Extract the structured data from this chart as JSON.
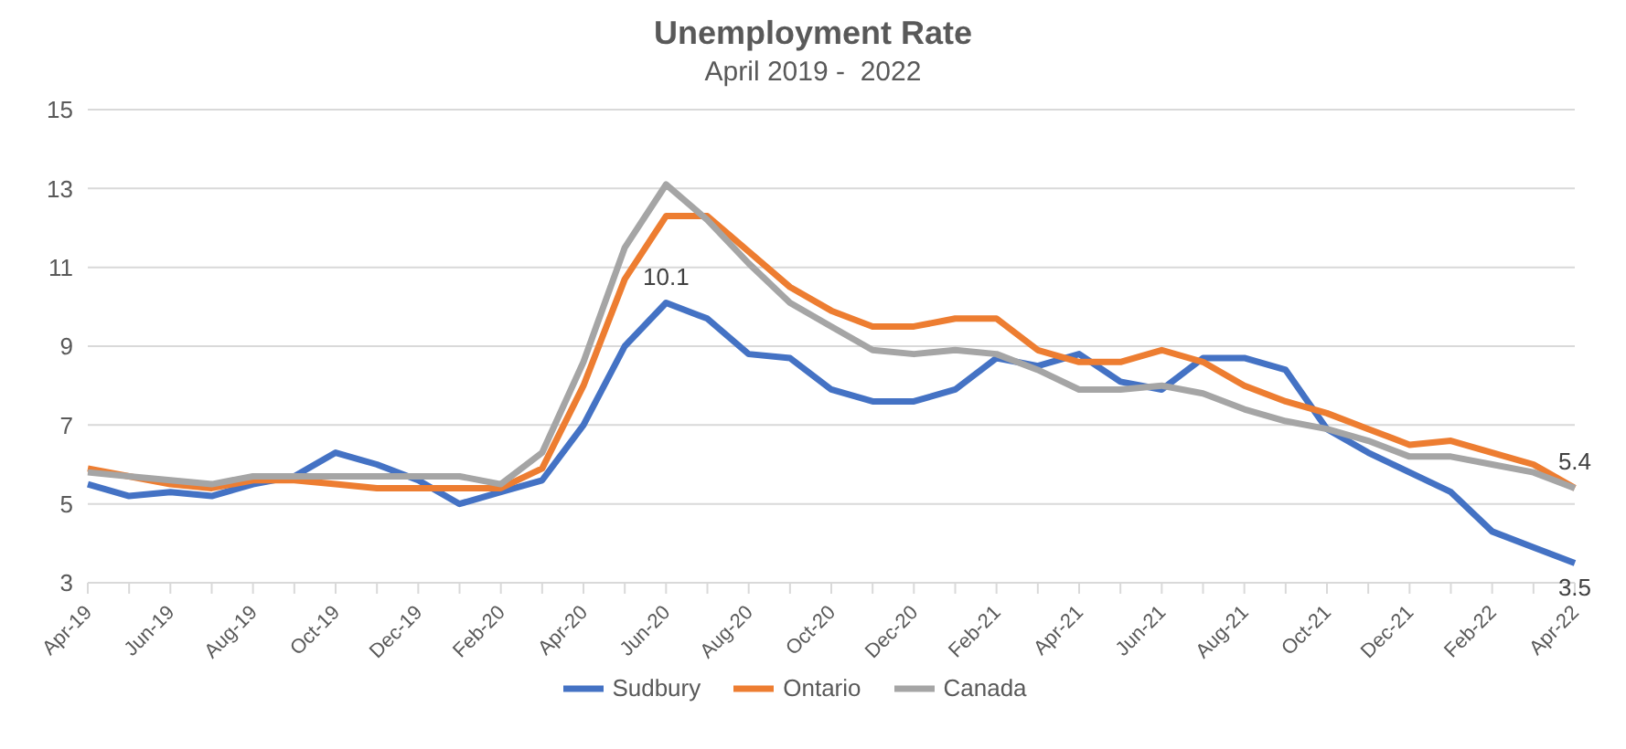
{
  "chart_data": {
    "type": "line",
    "title": "Unemployment Rate",
    "subtitle": "April 2019 -  2022",
    "categories": [
      "Apr-19",
      null,
      "Jun-19",
      null,
      "Aug-19",
      null,
      "Oct-19",
      null,
      "Dec-19",
      null,
      "Feb-20",
      null,
      "Apr-20",
      null,
      "Jun-20",
      null,
      "Aug-20",
      null,
      "Oct-20",
      null,
      "Dec-20",
      null,
      "Feb-21",
      null,
      "Apr-21",
      null,
      "Jun-21",
      null,
      "Aug-21",
      null,
      "Oct-21",
      null,
      "Dec-21",
      null,
      "Feb-22",
      null,
      "Apr-22"
    ],
    "series": [
      {
        "name": "Sudbury",
        "color": "#4472c4",
        "values": [
          5.5,
          5.2,
          5.3,
          5.2,
          5.5,
          5.7,
          6.3,
          6.0,
          5.6,
          5.0,
          5.3,
          5.6,
          7.0,
          9.0,
          10.1,
          9.7,
          8.8,
          8.7,
          7.9,
          7.6,
          7.6,
          7.9,
          8.7,
          8.5,
          8.8,
          8.1,
          7.9,
          8.7,
          8.7,
          8.4,
          6.9,
          6.3,
          5.8,
          5.3,
          4.3,
          3.9,
          3.5
        ],
        "value_labels": [
          null,
          null,
          null,
          null,
          null,
          null,
          null,
          null,
          null,
          null,
          null,
          null,
          null,
          null,
          "10.1",
          null,
          null,
          null,
          null,
          null,
          null,
          null,
          null,
          null,
          null,
          null,
          null,
          null,
          null,
          null,
          null,
          null,
          null,
          null,
          null,
          null,
          "3.5"
        ]
      },
      {
        "name": "Ontario",
        "color": "#ed7d31",
        "values": [
          5.9,
          5.7,
          5.5,
          5.4,
          5.6,
          5.6,
          5.5,
          5.4,
          5.4,
          5.4,
          5.4,
          5.9,
          8.0,
          10.7,
          12.3,
          12.3,
          11.4,
          10.5,
          9.9,
          9.5,
          9.5,
          9.7,
          9.7,
          8.9,
          8.6,
          8.6,
          8.9,
          8.6,
          8.0,
          7.6,
          7.3,
          6.9,
          6.5,
          6.6,
          6.3,
          6.0,
          5.4
        ],
        "value_labels": [
          null,
          null,
          null,
          null,
          null,
          null,
          null,
          null,
          null,
          null,
          null,
          null,
          null,
          null,
          null,
          null,
          null,
          null,
          null,
          null,
          null,
          null,
          null,
          null,
          null,
          null,
          null,
          null,
          null,
          null,
          null,
          null,
          null,
          null,
          null,
          null,
          "5.4"
        ]
      },
      {
        "name": "Canada",
        "color": "#a5a5a5",
        "values": [
          5.8,
          5.7,
          5.6,
          5.5,
          5.7,
          5.7,
          5.7,
          5.7,
          5.7,
          5.7,
          5.5,
          6.3,
          8.6,
          11.5,
          13.1,
          12.2,
          11.1,
          10.1,
          9.5,
          8.9,
          8.8,
          8.9,
          8.8,
          8.4,
          7.9,
          7.9,
          8.0,
          7.8,
          7.4,
          7.1,
          6.9,
          6.6,
          6.2,
          6.2,
          6.0,
          5.8,
          5.4
        ]
      }
    ],
    "ylim": [
      3,
      15
    ],
    "yticks": [
      3,
      5,
      7,
      9,
      11,
      13,
      15
    ],
    "grid": "y",
    "legend": "bottom",
    "marker": "none",
    "line_style": "solid"
  }
}
